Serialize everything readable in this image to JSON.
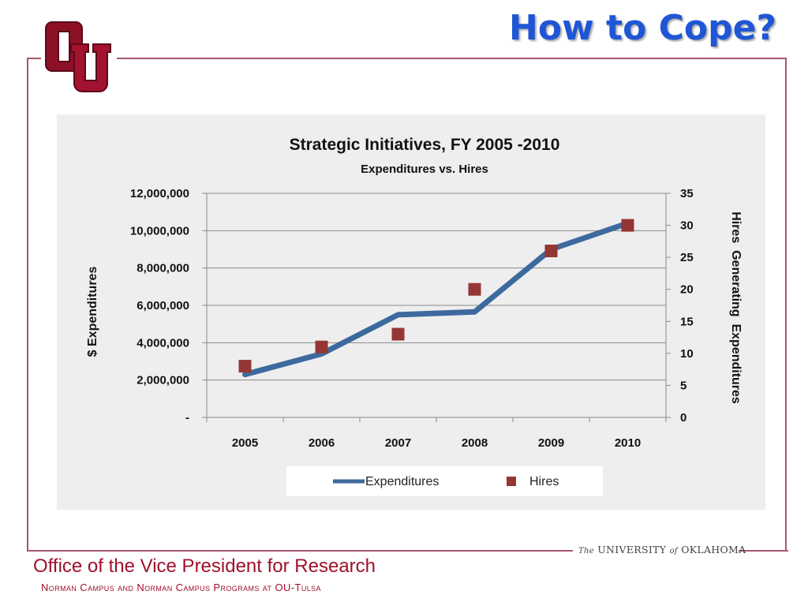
{
  "slide": {
    "title": "How to Cope?",
    "footer_title": "Office of the Vice President for Research",
    "footer_subtitle": "Norman Campus and Norman Campus Programs at OU-Tulsa",
    "university_the": "The",
    "university_main": "UNIVERSITY",
    "university_of": "of",
    "university_state": "OKLAHOMA",
    "logo_text": "OU"
  },
  "colors": {
    "title": "#1f56d6",
    "footer": "#a0102c",
    "frame": "#a8566a",
    "logo": "#8c1026",
    "expenditures": "#3d6a9e",
    "hires": "#943634",
    "chart_bg": "#eeeeee"
  },
  "chart_data": {
    "type": "line",
    "title": "Strategic Initiatives, FY 2005 -2010",
    "subtitle": "Expenditures vs. Hires",
    "categories": [
      "2005",
      "2006",
      "2007",
      "2008",
      "2009",
      "2010"
    ],
    "ylabel": "$ Expenditures",
    "y2label": "Hires  Generating  Expenditures",
    "ylim": [
      0,
      12000000
    ],
    "y2lim": [
      0,
      35
    ],
    "y_ticks": [
      "-",
      "2,000,000",
      "4,000,000",
      "6,000,000",
      "8,000,000",
      "10,000,000",
      "12,000,000"
    ],
    "y2_ticks": [
      "0",
      "5",
      "10",
      "15",
      "20",
      "25",
      "30",
      "35"
    ],
    "series": [
      {
        "name": "Expenditures",
        "kind": "line",
        "axis": "left",
        "values": [
          2300000,
          3400000,
          5500000,
          5650000,
          9000000,
          10400000
        ]
      },
      {
        "name": "Hires",
        "kind": "scatter",
        "axis": "right",
        "values": [
          8,
          11,
          13,
          20,
          26,
          30
        ]
      }
    ],
    "grid": true,
    "legend": "bottom"
  }
}
